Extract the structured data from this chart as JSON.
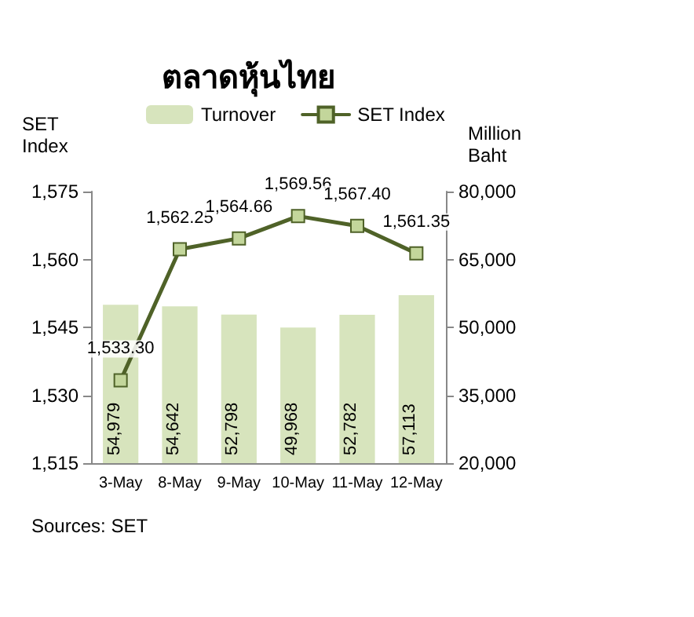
{
  "chart_data": {
    "type": "bar",
    "title": "ตลาดหุ้นไทย",
    "categories": [
      "3-May",
      "8-May",
      "9-May",
      "10-May",
      "11-May",
      "12-May"
    ],
    "series": [
      {
        "name": "Turnover",
        "axis": "y2",
        "color": "#d7e4bd",
        "values": [
          54979,
          54642,
          52798,
          49968,
          52782,
          57113
        ],
        "value_labels": [
          "54,979",
          "54,642",
          "52,798",
          "49,968",
          "52,782",
          "57,113"
        ]
      },
      {
        "name": "SET Index",
        "type": "line",
        "color": "#4f6228",
        "marker": "square",
        "line_style": "solid",
        "values": [
          1533.3,
          1562.25,
          1564.66,
          1569.56,
          1567.4,
          1561.35
        ],
        "value_labels": [
          "1,533.30",
          "1,562.25",
          "1,564.66",
          "1,569.56",
          "1,567.40",
          "1,561.35"
        ]
      }
    ],
    "ylabel": "SET Index",
    "y2label": "Million Baht",
    "ylim": [
      1515,
      1575
    ],
    "yticks": [
      {
        "value": 1515,
        "label": "1,515"
      },
      {
        "value": 1530,
        "label": "1,530"
      },
      {
        "value": 1545,
        "label": "1,545"
      },
      {
        "value": 1560,
        "label": "1,560"
      },
      {
        "value": 1575,
        "label": "1,575"
      }
    ],
    "y2lim": [
      20000,
      80000
    ],
    "y2ticks": [
      {
        "value": 20000,
        "label": "20,000"
      },
      {
        "value": 35000,
        "label": "35,000"
      },
      {
        "value": 50000,
        "label": "50,000"
      },
      {
        "value": 65000,
        "label": "65,000"
      },
      {
        "value": 80000,
        "label": "80,000"
      }
    ],
    "legend": "top",
    "grid": false,
    "annotations": [
      "Sources: SET"
    ]
  }
}
